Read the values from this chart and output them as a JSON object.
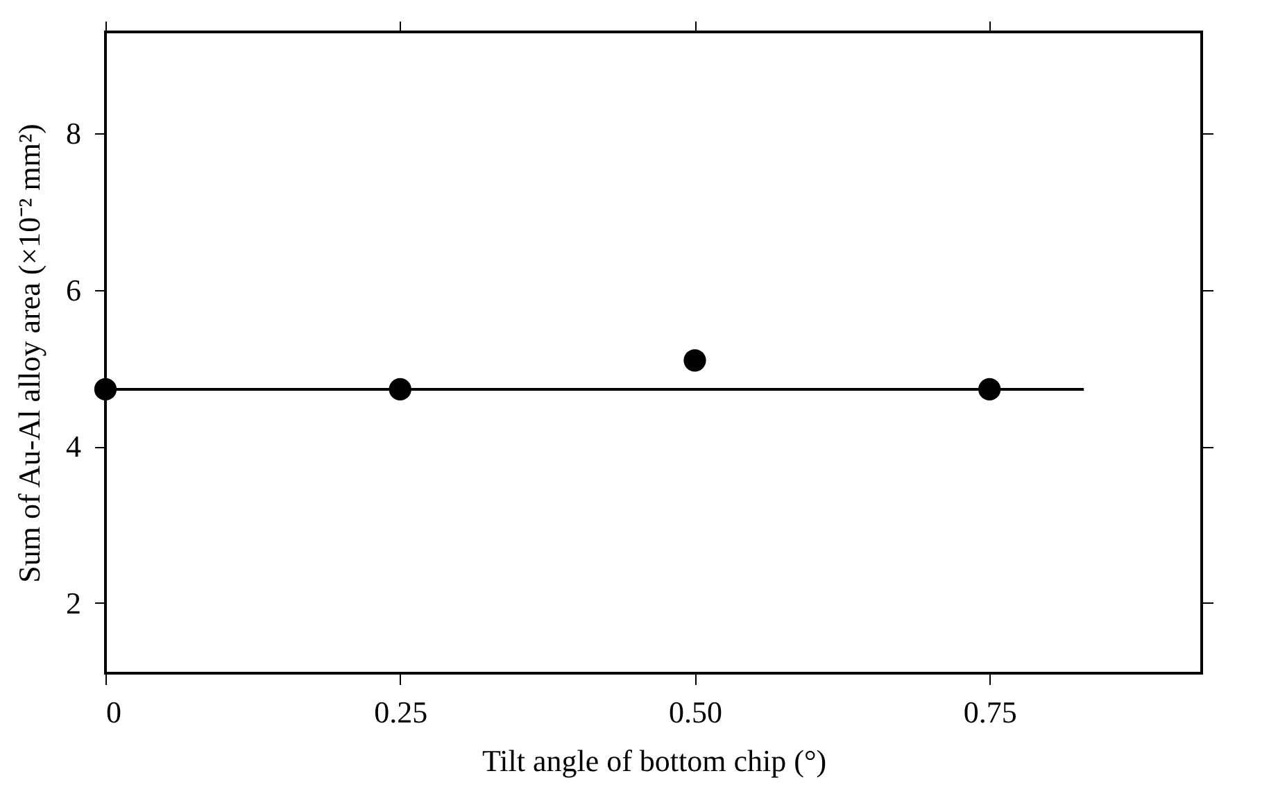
{
  "chart_data": {
    "type": "scatter",
    "xlabel": "Tilt angle of bottom chip (°)",
    "ylabel": "Sum of Au-Al alloy area (×10⁻² mm²)",
    "x": [
      0,
      0.25,
      0.5,
      0.75
    ],
    "series": [
      {
        "color": "#000000",
        "values": [
          4.73,
          4.73,
          5.1,
          4.73
        ],
        "marker": "circle"
      },
      {
        "type": "line",
        "color": "#000000",
        "x": [
          0,
          0.83
        ],
        "values": [
          4.73,
          4.73
        ],
        "line_style": "solid",
        "marker": "none"
      }
    ],
    "xlim": [
      0,
      0.93
    ],
    "xticks": [
      0,
      0.25,
      {
        "value": 0.5,
        "label": "0.50"
      },
      0.75
    ],
    "ylim": [
      1.1,
      9.3
    ],
    "yticks": [
      2,
      4,
      6,
      8
    ],
    "grid": false
  }
}
